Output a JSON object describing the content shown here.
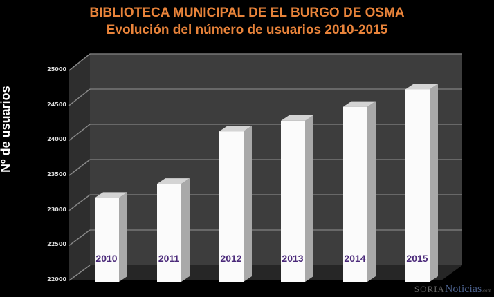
{
  "chart_data": {
    "type": "bar",
    "title": "BIBLIOTECA MUNICIPAL DE EL BURGO DE OSMA",
    "subtitle": "Evolución del número de usuarios 2010-2015",
    "xlabel": "",
    "ylabel": "Nº de usuarios",
    "categories": [
      "2010",
      "2011",
      "2012",
      "2013",
      "2014",
      "2015"
    ],
    "values": [
      23200,
      23400,
      24150,
      24300,
      24500,
      24750
    ],
    "ylim": [
      22000,
      25000
    ],
    "yticks": [
      "25000",
      "24500",
      "24000",
      "23500",
      "23000",
      "22500",
      "22000"
    ],
    "grid": true,
    "legend": "none"
  },
  "watermark": {
    "part1": "SORIA",
    "part2": "Noticias",
    "part3": ".com"
  }
}
